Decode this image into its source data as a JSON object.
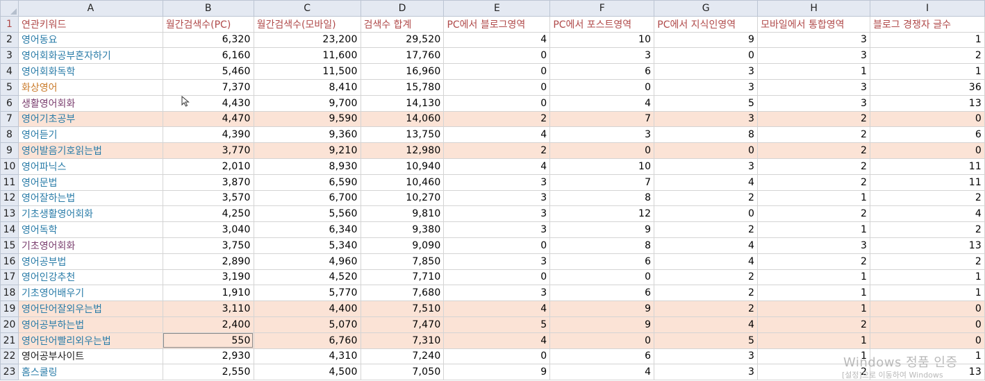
{
  "columns": [
    "A",
    "B",
    "C",
    "D",
    "E",
    "F",
    "G",
    "H",
    "I"
  ],
  "headers": [
    "연관키워드",
    "월간검색수(PC)",
    "월간검색수(모바일)",
    "검색수 합계",
    "PC에서 블로그영역",
    "PC에서 포스트영역",
    "PC에서 지식인영역",
    "모바일에서 통합영역",
    "블로그 경쟁자 글수"
  ],
  "rows": [
    {
      "n": "2",
      "kw": "영어동요",
      "color": "#2a7ca8",
      "hl": false,
      "v": [
        "6,320",
        "23,200",
        "29,520",
        "4",
        "10",
        "9",
        "3",
        "1"
      ]
    },
    {
      "n": "3",
      "kw": "영어회화공부혼자하기",
      "color": "#2a7ca8",
      "hl": false,
      "v": [
        "6,160",
        "11,600",
        "17,760",
        "0",
        "3",
        "0",
        "3",
        "2"
      ]
    },
    {
      "n": "4",
      "kw": "영어회화독학",
      "color": "#2a7ca8",
      "hl": false,
      "v": [
        "5,460",
        "11,500",
        "16,960",
        "0",
        "6",
        "3",
        "1",
        "1"
      ]
    },
    {
      "n": "5",
      "kw": "화상영어",
      "color": "#c97a2a",
      "hl": false,
      "v": [
        "7,370",
        "8,410",
        "15,780",
        "0",
        "0",
        "3",
        "3",
        "36"
      ]
    },
    {
      "n": "6",
      "kw": "생활영어회화",
      "color": "#7a3d6e",
      "hl": false,
      "v": [
        "4,430",
        "9,700",
        "14,130",
        "0",
        "4",
        "5",
        "3",
        "13"
      ]
    },
    {
      "n": "7",
      "kw": "영어기초공부",
      "color": "#2a7ca8",
      "hl": true,
      "v": [
        "4,470",
        "9,590",
        "14,060",
        "2",
        "7",
        "3",
        "2",
        "0"
      ]
    },
    {
      "n": "8",
      "kw": "영어듣기",
      "color": "#2a7ca8",
      "hl": false,
      "v": [
        "4,390",
        "9,360",
        "13,750",
        "4",
        "3",
        "8",
        "2",
        "6"
      ]
    },
    {
      "n": "9",
      "kw": "영어발음기호읽는법",
      "color": "#2a7ca8",
      "hl": true,
      "v": [
        "3,770",
        "9,210",
        "12,980",
        "2",
        "0",
        "0",
        "2",
        "0"
      ]
    },
    {
      "n": "10",
      "kw": "영어파닉스",
      "color": "#2a7ca8",
      "hl": false,
      "v": [
        "2,010",
        "8,930",
        "10,940",
        "4",
        "10",
        "3",
        "2",
        "11"
      ]
    },
    {
      "n": "11",
      "kw": "영어문법",
      "color": "#2a7ca8",
      "hl": false,
      "v": [
        "3,870",
        "6,590",
        "10,460",
        "3",
        "7",
        "4",
        "2",
        "11"
      ]
    },
    {
      "n": "12",
      "kw": "영어잘하는법",
      "color": "#2a7ca8",
      "hl": false,
      "v": [
        "3,570",
        "6,700",
        "10,270",
        "3",
        "8",
        "2",
        "1",
        "2"
      ]
    },
    {
      "n": "13",
      "kw": "기초생활영어회화",
      "color": "#2a7ca8",
      "hl": false,
      "v": [
        "4,250",
        "5,560",
        "9,810",
        "3",
        "12",
        "0",
        "2",
        "4"
      ]
    },
    {
      "n": "14",
      "kw": "영어독학",
      "color": "#2a7ca8",
      "hl": false,
      "v": [
        "3,040",
        "6,340",
        "9,380",
        "3",
        "9",
        "2",
        "1",
        "2"
      ]
    },
    {
      "n": "15",
      "kw": "기초영어회화",
      "color": "#7a3d6e",
      "hl": false,
      "v": [
        "3,750",
        "5,340",
        "9,090",
        "0",
        "8",
        "4",
        "3",
        "13"
      ]
    },
    {
      "n": "16",
      "kw": "영어공부법",
      "color": "#2a7ca8",
      "hl": false,
      "v": [
        "2,890",
        "4,960",
        "7,850",
        "3",
        "6",
        "4",
        "2",
        "2"
      ]
    },
    {
      "n": "17",
      "kw": "영어인강추천",
      "color": "#2a7ca8",
      "hl": false,
      "v": [
        "3,190",
        "4,520",
        "7,710",
        "0",
        "0",
        "2",
        "1",
        "1"
      ]
    },
    {
      "n": "18",
      "kw": "기초영어배우기",
      "color": "#2a7ca8",
      "hl": false,
      "v": [
        "1,910",
        "5,770",
        "7,680",
        "3",
        "6",
        "2",
        "1",
        "1"
      ]
    },
    {
      "n": "19",
      "kw": "영어단어잘외우는법",
      "color": "#2a7ca8",
      "hl": true,
      "v": [
        "3,110",
        "4,400",
        "7,510",
        "4",
        "9",
        "2",
        "1",
        "0"
      ]
    },
    {
      "n": "20",
      "kw": "영어공부하는법",
      "color": "#2a7ca8",
      "hl": true,
      "v": [
        "2,400",
        "5,070",
        "7,470",
        "5",
        "9",
        "4",
        "2",
        "0"
      ]
    },
    {
      "n": "21",
      "kw": "영어단어빨리외우는법",
      "color": "#2a7ca8",
      "hl": true,
      "v": [
        "550",
        "6,760",
        "7,310",
        "4",
        "0",
        "5",
        "1",
        "0"
      ]
    },
    {
      "n": "22",
      "kw": "영어공부사이트",
      "color": "#222222",
      "hl": false,
      "v": [
        "2,930",
        "4,310",
        "7,240",
        "0",
        "6",
        "3",
        "1",
        "1"
      ]
    },
    {
      "n": "23",
      "kw": "홈스쿨링",
      "color": "#2a7ca8",
      "hl": false,
      "v": [
        "2,550",
        "4,500",
        "7,050",
        "9",
        "4",
        "3",
        "2",
        "13"
      ]
    }
  ],
  "watermark": {
    "line1": "Windows 정품 인증",
    "line2": "[설정]으로 이동하여 Windows"
  }
}
